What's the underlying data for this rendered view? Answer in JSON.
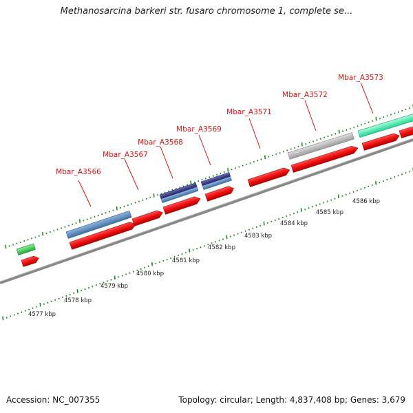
{
  "title": "Methanosarcina barkeri str. fusaro chromosome 1, complete se...",
  "footer": {
    "accession_label": "Accession:",
    "accession": "NC_007355",
    "topology_label": "Topology:",
    "topology": "circular",
    "length_label": "Length:",
    "length": "4,837,408 bp",
    "genes_label": "Genes:",
    "genes": "3,679"
  },
  "colors": {
    "label": "#dd1111",
    "forward_gene": "#ee1111",
    "blue_gene": "#5b8ec0",
    "navy_gene": "#3a3a8c",
    "grey_gene": "#c0c0c0",
    "green_gene": "#3dcc55",
    "mint_gene": "#33eeaa",
    "backbone": "#888888",
    "ticks": "#1a8a1a"
  },
  "gene_labels": [
    "Mbar_A3566",
    "Mbar_A3567",
    "Mbar_A3568",
    "Mbar_A3569",
    "Mbar_A3571",
    "Mbar_A3572",
    "Mbar_A3573"
  ],
  "kbp_labels": [
    "4577 kbp",
    "4578 kbp",
    "4579 kbp",
    "4580 kbp",
    "4581 kbp",
    "4582 kbp",
    "4583 kbp",
    "4584 kbp",
    "4585 kbp",
    "4586 kbp"
  ],
  "icons": [
    "genome-map"
  ]
}
